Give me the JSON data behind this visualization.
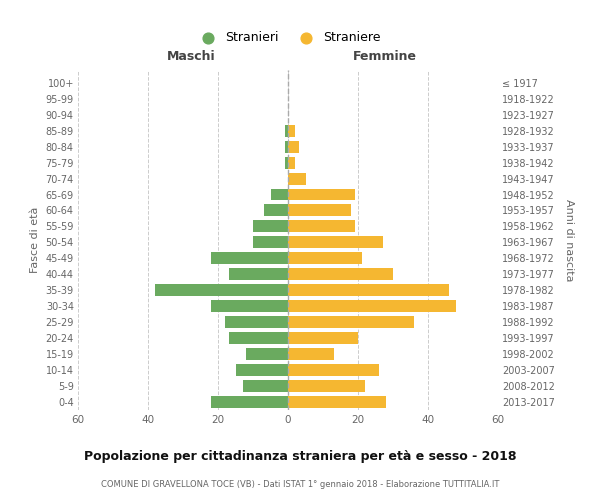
{
  "age_groups": [
    "0-4",
    "5-9",
    "10-14",
    "15-19",
    "20-24",
    "25-29",
    "30-34",
    "35-39",
    "40-44",
    "45-49",
    "50-54",
    "55-59",
    "60-64",
    "65-69",
    "70-74",
    "75-79",
    "80-84",
    "85-89",
    "90-94",
    "95-99",
    "100+"
  ],
  "birth_years": [
    "2013-2017",
    "2008-2012",
    "2003-2007",
    "1998-2002",
    "1993-1997",
    "1988-1992",
    "1983-1987",
    "1978-1982",
    "1973-1977",
    "1968-1972",
    "1963-1967",
    "1958-1962",
    "1953-1957",
    "1948-1952",
    "1943-1947",
    "1938-1942",
    "1933-1937",
    "1928-1932",
    "1923-1927",
    "1918-1922",
    "≤ 1917"
  ],
  "maschi": [
    22,
    13,
    15,
    12,
    17,
    18,
    22,
    38,
    17,
    22,
    10,
    10,
    7,
    5,
    0,
    1,
    1,
    1,
    0,
    0,
    0
  ],
  "femmine": [
    28,
    22,
    26,
    13,
    20,
    36,
    48,
    46,
    30,
    21,
    27,
    19,
    18,
    19,
    5,
    2,
    3,
    2,
    0,
    0,
    0
  ],
  "maschi_color": "#6aaa5f",
  "femmine_color": "#f5b731",
  "background_color": "#ffffff",
  "grid_color": "#cccccc",
  "title": "Popolazione per cittadinanza straniera per età e sesso - 2018",
  "subtitle": "COMUNE DI GRAVELLONA TOCE (VB) - Dati ISTAT 1° gennaio 2018 - Elaborazione TUTTITALIA.IT",
  "xlabel_left": "Maschi",
  "xlabel_right": "Femmine",
  "ylabel_left": "Fasce di età",
  "ylabel_right": "Anni di nascita",
  "legend_maschi": "Stranieri",
  "legend_femmine": "Straniere",
  "xlim": 60,
  "bar_height": 0.75
}
